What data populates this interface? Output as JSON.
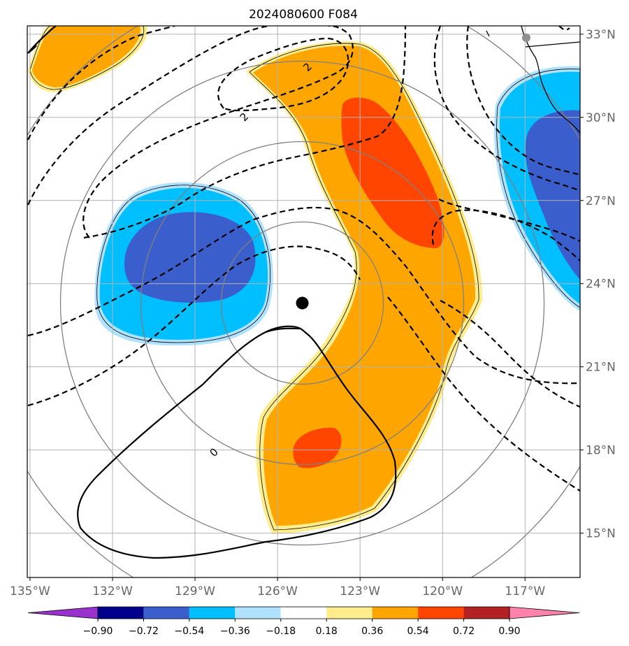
{
  "title": "2024080600 F084",
  "map": {
    "lon_ticks": [
      {
        "value": -135,
        "label": "135°W"
      },
      {
        "value": -132,
        "label": "132°W"
      },
      {
        "value": -129,
        "label": "129°W"
      },
      {
        "value": -126,
        "label": "126°W"
      },
      {
        "value": -123,
        "label": "123°W"
      },
      {
        "value": -120,
        "label": "120°W"
      },
      {
        "value": -117,
        "label": "117°W"
      }
    ],
    "lat_ticks": [
      {
        "value": 15,
        "label": "15°N"
      },
      {
        "value": 18,
        "label": "18°N"
      },
      {
        "value": 21,
        "label": "21°N"
      },
      {
        "value": 24,
        "label": "24°N"
      },
      {
        "value": 27,
        "label": "27°N"
      },
      {
        "value": 30,
        "label": "30°N"
      },
      {
        "value": 33,
        "label": "33°N"
      }
    ],
    "lon_range": [
      -135.1,
      -115.0
    ],
    "lat_range": [
      13.4,
      33.3
    ],
    "grid": true,
    "storm_center": {
      "lon": -125.1,
      "lat": 23.3
    },
    "range_rings_count": 4,
    "contour_labels": [
      {
        "text": "2",
        "lon": -127.2,
        "lat": 30.0
      },
      {
        "text": "2",
        "lon": -124.9,
        "lat": 31.8
      },
      {
        "text": "0",
        "lon": -128.3,
        "lat": 17.9
      }
    ],
    "colors": {
      "-0.90": "#9932cc",
      "-0.72": "#00008b",
      "-0.54": "#3a5fcd",
      "-0.36": "#00bfff",
      "-0.18": "#b0e2ff",
      "0.18": "#ffffff",
      "0.36": "#ffec8b",
      "0.54": "#ffa500",
      "0.72": "#ff4500",
      "0.90": "#b22222",
      "over": "#ff82ab"
    }
  },
  "colorbar": {
    "labels": [
      "−0.90",
      "−0.72",
      "−0.54",
      "−0.36",
      "−0.18",
      "0.18",
      "0.36",
      "0.54",
      "0.72",
      "0.90"
    ],
    "colors": [
      "#9932cc",
      "#00008b",
      "#3a5fcd",
      "#00bfff",
      "#b0e2ff",
      "#ffffff",
      "#ffec8b",
      "#ffa500",
      "#ff4500",
      "#b22222",
      "#ff82ab"
    ]
  }
}
